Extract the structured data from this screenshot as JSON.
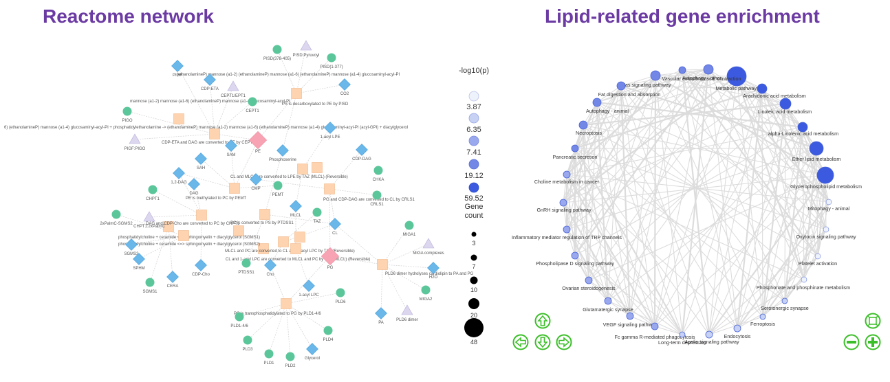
{
  "titles": {
    "left": "Reactome network",
    "right": "Lipid-related gene enrichment"
  },
  "colors": {
    "title": "#6b3aa3",
    "gene_node": "#5bc69a",
    "molecule_node": "#6ab7ea",
    "reaction_node": "#fdd3b0",
    "complex_node": "#dcd6ee",
    "highlight_node": "#f8a3b3",
    "nav_control": "#3bbf28",
    "edge": "#d6d6d6",
    "pval_scale": [
      "#eef2fb",
      "#c7d1f4",
      "#9aa8ed",
      "#7387e6",
      "#3c5adf"
    ]
  },
  "legend": {
    "pval_title": "-log10(p)",
    "pval_values": [
      "3.87",
      "6.35",
      "7.41",
      "19.12",
      "59.52"
    ],
    "count_title_1": "Gene",
    "count_title_2": "count",
    "count_values": [
      "3",
      "7",
      "10",
      "20",
      "48"
    ]
  },
  "reactome": {
    "labels": {
      "PIGF": "PIGF",
      "PIGO": "PIGO",
      "PIGFPIGO": "PIGF:PIGO",
      "CDPETA": "CDP-ETA",
      "CEPT1EPT1": "CEPT1/EPT1",
      "CEPT1": "CEPT1",
      "PISDPyruvoyl": "PISD:Pyruvoyl",
      "PISD378": "PISD(378-405)",
      "PISD1377": "PISD(1-377)",
      "CO2": "CO2",
      "PE": "PE",
      "SAM": "SAM",
      "SAH": "SAH",
      "Phosphoserine": "Phosphoserine",
      "OneAcylLPE": "1-acyl LPE",
      "CDPDAG": "CDP-DAG",
      "CHKA": "CHKA",
      "CRLS1": "CRLS1",
      "OneTwoDAG": "1,2-DAG",
      "DAG": "DAG",
      "CMP": "CMP",
      "PEMT": "PEMT",
      "MLCL": "MLCL",
      "TAZ": "TAZ",
      "CL": "CL",
      "CHPT1": "CHPT1",
      "SGMS2c": "2xPalmC-SGMS2",
      "CHPT1comp": "CHPT1:2xPalmC",
      "SGMS2": "SGMS2",
      "SPHM": "SPHM",
      "SGMS1": "SGMS1",
      "CERA": "CERA",
      "CDPCho": "CDP-Cho",
      "PTDSS1": "PTDSS1",
      "Cho": "Cho",
      "PG": "PG",
      "MIGA1": "MIGA1",
      "MIGAcomplex": "MIGA complexes",
      "H2O": "H2O",
      "MIGA2": "MIGA2",
      "PA": "PA",
      "PLD6dimer": "PLD6 dimer",
      "PLD6": "PLD6",
      "OneAcylLPC": "1-acyl LPC",
      "PLD146": "PLD1-4/6",
      "PLD3": "PLD3",
      "PLD1": "PLD1",
      "PLD2": "PLD2",
      "PLD4": "PLD4",
      "Glycerol": "Glycerol"
    },
    "reactions": {
      "r1": "(ethanolamineP) mannose (a1-2) (ethanolamineP) mannose (a1-6) (ethanolamineP) mannose (a1-4) glucosaminyl-acyl-PI",
      "r2": "mannose (a1-2) mannose (a1-6) (ethanolamineP) mannose (a1-4) glucosaminyl-acyl-PI",
      "r3": "6) (ethanolamineP) mannose (a1-4) glucosaminyl-acyl-PI + phosphatidylethanolamine -> (ethanolamineP) mannose (a1-2) mannose (a1-6) (ethanolamineP) mannose (a1-4) glucosaminyl-acyl-PI (acyl-GPI) + diacylglycerol",
      "r4": "PS is decarboxylated to PE by PISD",
      "r5": "CDP-ETA and DAG are converted to PE by CEPT1",
      "r6": "PE is methylated to PC by PEMT",
      "r7": "PG and CDP-DAG are converted to CL by CRLS1",
      "r8": "CL and MLCL are converted to LPE by TAZ (MLCL) (Reversible)",
      "r9": "PC is converted to PS by PTDSS1",
      "r10": "MLCL and PC are converted to CL and 1-acyl LPC by TAZ (Reversible)",
      "r11": "CL and 1-acyl LPC are converted to MLCL and PC by TAZ (MLCL) (Reversible)",
      "r12": "PLD6 dimer hydrolyses cardiolipin to PA and PG",
      "r13": "PC is transphosphatidylated to PG by PLD1-4/6",
      "r14": "phosphatidylcholine + ceramide <=> sphingomyelin + diacylglycerol (SGMS1)",
      "r15": "phosphatidylcholine + ceramide <=> sphingomyelin + diacylglycerol (SGMS2)",
      "r16": "DAG and CDP-Cho are converted to PC by CHPT1"
    }
  },
  "enrichment": {
    "pathways": {
      "p0": "Metabolic pathways",
      "p1": "Vascular smooth muscle contraction",
      "p2": "Autophagy - other",
      "p3": "Fas signaling pathway",
      "p4": "Arachidonic acid metabolism",
      "p5": "Fat digestion and absorption",
      "p6": "Linoleic acid metabolism",
      "p7": "Autophagy - animal",
      "p8": "alpha-Linolenic acid metabolism",
      "p9": "Necroptosis",
      "p10": "Ether lipid metabolism",
      "p11": "Pancreatic secretion",
      "p12": "Glycerophospholipid metabolism",
      "p13": "Choline metabolism in cancer",
      "p14": "Mitophagy - animal",
      "p15": "GnRH signaling pathway",
      "p16": "Oxytocin signaling pathway",
      "p17": "Inflammatory mediator regulation of TRP channels",
      "p18": "Platelet activation",
      "p19": "Phospholipase D signaling pathway",
      "p20": "Phosphonate and phosphinate metabolism",
      "p21": "Ovarian steroidogenesis",
      "p22": "Serotonergic synapse",
      "p23": "Glutamatergic synapse",
      "p24": "Ferroptosis",
      "p25": "VEGF signaling pathway",
      "p26": "Endocytosis",
      "p27": "Fc gamma R-mediated phagocytosis",
      "p28": "Apelin signaling pathway",
      "p29": "Long-term depression"
    }
  }
}
